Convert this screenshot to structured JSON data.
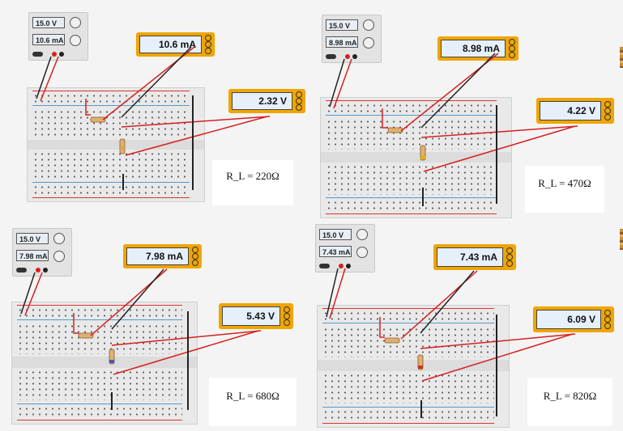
{
  "panels": [
    {
      "psu_voltage": "15.0 V",
      "psu_current": "10.6 mA",
      "ammeter": "10.6 mA",
      "voltmeter": "2.32 V",
      "rl_label": "R_L = 220Ω",
      "load_band": "#d9a441"
    },
    {
      "psu_voltage": "15.0 V",
      "psu_current": "8.98 mA",
      "ammeter": "8.98 mA",
      "voltmeter": "4.22 V",
      "rl_label": "R_L = 470Ω",
      "load_band": "#e3b200"
    },
    {
      "psu_voltage": "15.0 V",
      "psu_current": "7.98 mA",
      "ammeter": "7.98 mA",
      "voltmeter": "5.43 V",
      "rl_label": "R_L = 680Ω",
      "load_band": "#3b5bbf"
    },
    {
      "psu_voltage": "15.0 V",
      "psu_current": "7.43 mA",
      "ammeter": "7.43 mA",
      "voltmeter": "6.09 V",
      "rl_label": "R_L = 820Ω",
      "load_band": "#c1392b"
    }
  ],
  "colors": {
    "meter": "#f0a500",
    "wire_red": "#d62020",
    "wire_black": "#222222"
  },
  "icons": {
    "psu_knob": "knob-icon",
    "meter_terminal": "terminal-icon"
  }
}
